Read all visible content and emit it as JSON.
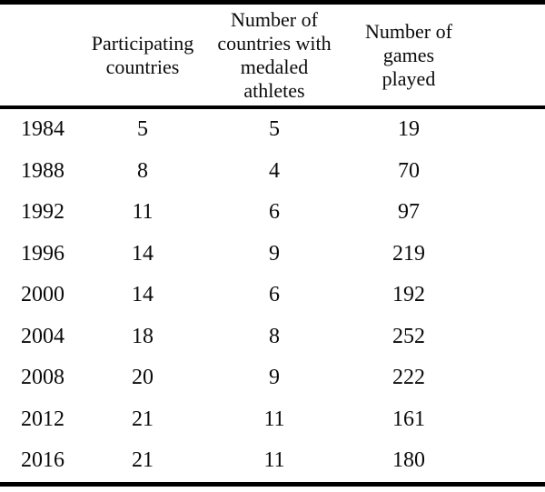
{
  "colors": {
    "background": "#ffffff",
    "text": "#0a0a0a",
    "rule": "#000000"
  },
  "table": {
    "headers": [
      {
        "key": "year",
        "lines": []
      },
      {
        "key": "participating",
        "lines": [
          "Participating",
          "countries"
        ]
      },
      {
        "key": "medaled",
        "lines": [
          "Number of",
          "countries with",
          "medaled",
          "athletes"
        ]
      },
      {
        "key": "games",
        "lines": [
          "Number of",
          "games",
          "played"
        ]
      }
    ],
    "rows": [
      [
        "1984",
        "5",
        "5",
        "19"
      ],
      [
        "1988",
        "8",
        "4",
        "70"
      ],
      [
        "1992",
        "11",
        "6",
        "97"
      ],
      [
        "1996",
        "14",
        "9",
        "219"
      ],
      [
        "2000",
        "14",
        "6",
        "192"
      ],
      [
        "2004",
        "18",
        "8",
        "252"
      ],
      [
        "2008",
        "20",
        "9",
        "222"
      ],
      [
        "2012",
        "21",
        "11",
        "161"
      ],
      [
        "2016",
        "21",
        "11",
        "180"
      ]
    ]
  },
  "chart_data": {
    "type": "table",
    "title": "",
    "categories": [
      "1984",
      "1988",
      "1992",
      "1996",
      "2000",
      "2004",
      "2008",
      "2012",
      "2016"
    ],
    "column_headers": [
      "",
      "Participating countries",
      "Number of countries with medaled athletes",
      "Number of games played"
    ],
    "series": [
      {
        "name": "Participating countries",
        "values": [
          5,
          8,
          11,
          14,
          14,
          18,
          20,
          21,
          21
        ]
      },
      {
        "name": "Number of countries with medaled athletes",
        "values": [
          5,
          4,
          6,
          9,
          6,
          8,
          9,
          11,
          11
        ]
      },
      {
        "name": "Number of games played",
        "values": [
          19,
          70,
          97,
          219,
          192,
          252,
          222,
          161,
          180
        ]
      }
    ],
    "layout": "rows are years 1984-2016 in 4-year steps; thick horizontal rules at top, below header, and bottom; no vertical rules; grid off"
  }
}
